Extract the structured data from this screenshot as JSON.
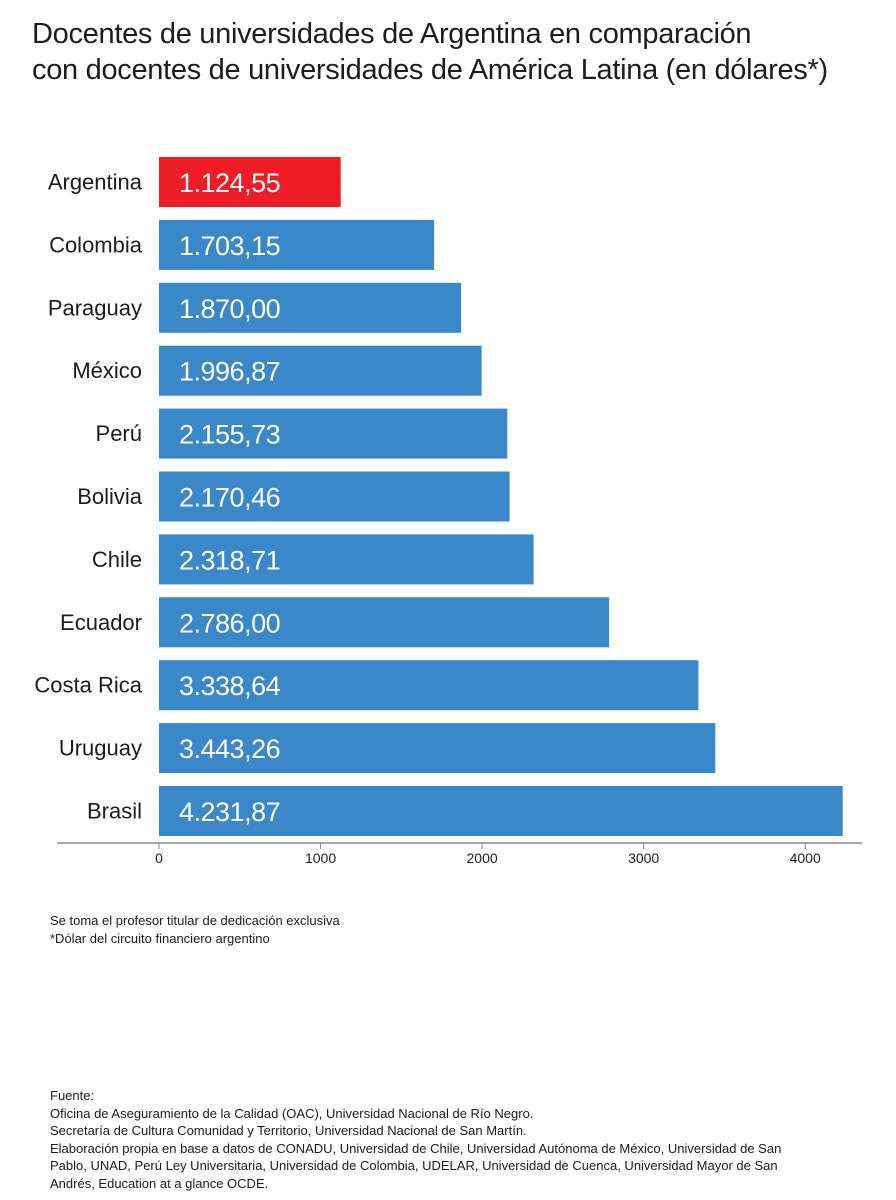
{
  "chart_data": {
    "type": "bar",
    "orientation": "horizontal",
    "title": "Docentes de universidades de Argentina en comparación con docentes de universidades de América Latina (en dólares*)",
    "title_lines": [
      "Docentes de universidades de Argentina en comparación",
      "con docentes de universidades de América Latina (en dólares*)"
    ],
    "categories": [
      "Argentina",
      "Colombia",
      "Paraguay",
      "México",
      "Perú",
      "Bolivia",
      "Chile",
      "Ecuador",
      "Costa Rica",
      "Uruguay",
      "Brasil"
    ],
    "values": [
      1124.55,
      1703.15,
      1870.0,
      1996.87,
      2155.73,
      2170.46,
      2318.71,
      2786.0,
      3338.64,
      3443.26,
      4231.87
    ],
    "value_labels": [
      "1.124,55",
      "1.703,15",
      "1.870,00",
      "1.996,87",
      "2.155,73",
      "2.170,46",
      "2.318,71",
      "2.786,00",
      "3.338,64",
      "3.443,26",
      "4.231,87"
    ],
    "highlight_category": "Argentina",
    "colors": {
      "default_bar": "#3a87c9",
      "highlight_bar": "#ee1c25",
      "value_text": "#ffffff",
      "axis": "#888888"
    },
    "xlim": [
      0,
      4300
    ],
    "x_ticks": [
      0,
      1000,
      2000,
      3000,
      4000
    ],
    "x_tick_labels": [
      "0",
      "1000",
      "2000",
      "3000",
      "4000"
    ],
    "xlabel": "",
    "ylabel": "",
    "grid": false,
    "legend": "none"
  },
  "notes": {
    "line1": "Se toma el profesor titular de dedicación exclusiva",
    "line2": "*Dólar del circuito financiero argentino"
  },
  "source": {
    "label": "Fuente:",
    "lines": [
      "Oficina de Aseguramiento de la Calidad (OAC), Universidad Nacional de Río Negro.",
      "Secretaría de Cultura Comunidad y Territorio, Universidad Nacional de San Martín.",
      "Elaboración propia en base a datos de CONADU, Universidad de Chile, Universidad Autónoma de México, Universidad de San",
      "Pablo, UNAD, Perú Ley Universitaria, Universidad de Colombia, UDELAR, Universidad de Cuenca, Universidad Mayor de San",
      "Andrés, Education at a glance OCDE."
    ]
  }
}
